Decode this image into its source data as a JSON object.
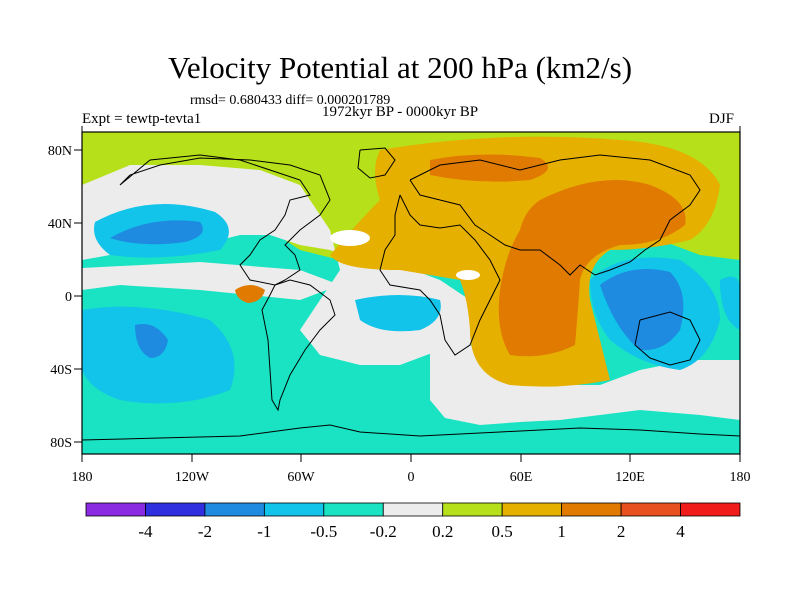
{
  "figure": {
    "title": "Velocity Potential at 200 hPa (km2/s)",
    "stats_line": "rmsd= 0.680433 diff= 0.000201789",
    "left_label": "Expt = tewtp-tevta1",
    "center_label": "1972kyr BP - 0000kyr BP",
    "right_label": "DJF"
  },
  "axes": {
    "lon_ticks": [
      "180",
      "120W",
      "60W",
      "0",
      "60E",
      "120E",
      "180"
    ],
    "lat_ticks": [
      "80N",
      "40N",
      "0",
      "40S",
      "80S"
    ]
  },
  "colorbar": {
    "levels": [
      "-4",
      "-2",
      "-1",
      "-0.5",
      "-0.2",
      "0.2",
      "0.5",
      "1",
      "2",
      "4"
    ],
    "colors": [
      "#8a2be2",
      "#2f2fe0",
      "#1e8ae0",
      "#12c3ea",
      "#19e3c2",
      "#ececec",
      "#b5e01a",
      "#e6b000",
      "#e07a00",
      "#e85020",
      "#f01c1c"
    ]
  }
}
